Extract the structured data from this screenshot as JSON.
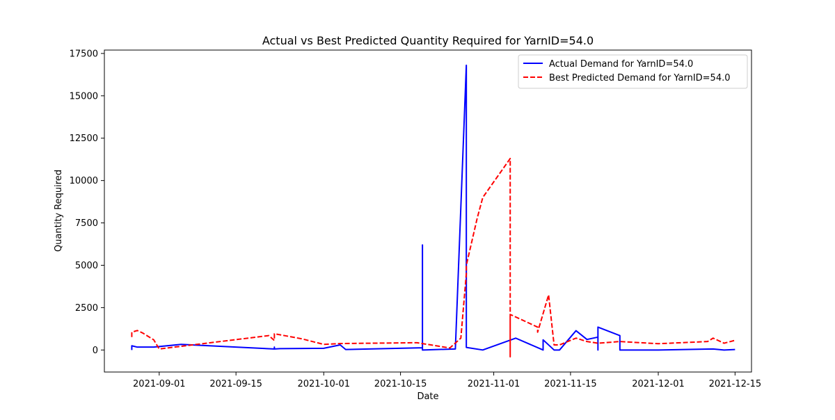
{
  "chart_data": {
    "type": "line",
    "title": "Actual vs Best Predicted Quantity Required for YarnID=54.0",
    "xlabel": "Date",
    "ylabel": "Quantity Required",
    "xlim": [
      "2021-08-22",
      "2021-12-18"
    ],
    "ylim": [
      -1300,
      17700
    ],
    "x_ticks": [
      "2021-09-01",
      "2021-09-15",
      "2021-10-01",
      "2021-10-15",
      "2021-11-01",
      "2021-11-15",
      "2021-12-01",
      "2021-12-15"
    ],
    "y_ticks": [
      0,
      2500,
      5000,
      7500,
      10000,
      12500,
      15000,
      17500
    ],
    "grid": false,
    "legend_position": "upper-right",
    "series": [
      {
        "name": "Actual Demand for YarnID=54.0",
        "color": "#0000ff",
        "style": "solid",
        "x": [
          "2021-08-27",
          "2021-08-27",
          "2021-08-28",
          "2021-08-30",
          "2021-08-31",
          "2021-09-05",
          "2021-09-22",
          "2021-09-22",
          "2021-09-22",
          "2021-09-23",
          "2021-10-01",
          "2021-10-04",
          "2021-10-05",
          "2021-10-19",
          "2021-10-19",
          "2021-10-19",
          "2021-10-25",
          "2021-10-27",
          "2021-10-27",
          "2021-10-30",
          "2021-11-05",
          "2021-11-10",
          "2021-11-10",
          "2021-11-12",
          "2021-11-13",
          "2021-11-16",
          "2021-11-18",
          "2021-11-20",
          "2021-11-20",
          "2021-11-20",
          "2021-11-24",
          "2021-11-24",
          "2021-11-24",
          "2021-12-01",
          "2021-12-11",
          "2021-12-13",
          "2021-12-15"
        ],
        "y": [
          0,
          250,
          170,
          170,
          170,
          330,
          60,
          170,
          60,
          80,
          100,
          300,
          30,
          130,
          6200,
          0,
          60,
          16800,
          150,
          0,
          700,
          0,
          600,
          0,
          0,
          1140,
          620,
          760,
          0,
          1350,
          850,
          650,
          0,
          0,
          60,
          0,
          30
        ]
      },
      {
        "name": "Best Predicted Demand for YarnID=54.0",
        "color": "#ff0000",
        "style": "dashed",
        "x": [
          "2021-08-27",
          "2021-08-27",
          "2021-08-28",
          "2021-08-29",
          "2021-08-31",
          "2021-09-01",
          "2021-09-21",
          "2021-09-22",
          "2021-09-22",
          "2021-09-27",
          "2021-10-01",
          "2021-10-04",
          "2021-10-18",
          "2021-10-24",
          "2021-10-26",
          "2021-10-27",
          "2021-10-27",
          "2021-10-29",
          "2021-10-30",
          "2021-11-04",
          "2021-11-04",
          "2021-11-04",
          "2021-11-09",
          "2021-11-09",
          "2021-11-11",
          "2021-11-12",
          "2021-11-13",
          "2021-11-16",
          "2021-11-18",
          "2021-11-20",
          "2021-11-24",
          "2021-12-01",
          "2021-12-10",
          "2021-12-11",
          "2021-12-13",
          "2021-12-15"
        ],
        "y": [
          760,
          1050,
          1150,
          1000,
          600,
          60,
          850,
          560,
          960,
          660,
          330,
          380,
          430,
          120,
          700,
          4500,
          5000,
          7800,
          9000,
          11300,
          -400,
          2100,
          1350,
          1050,
          3250,
          300,
          300,
          700,
          500,
          400,
          500,
          370,
          500,
          700,
          400,
          570
        ]
      }
    ]
  }
}
